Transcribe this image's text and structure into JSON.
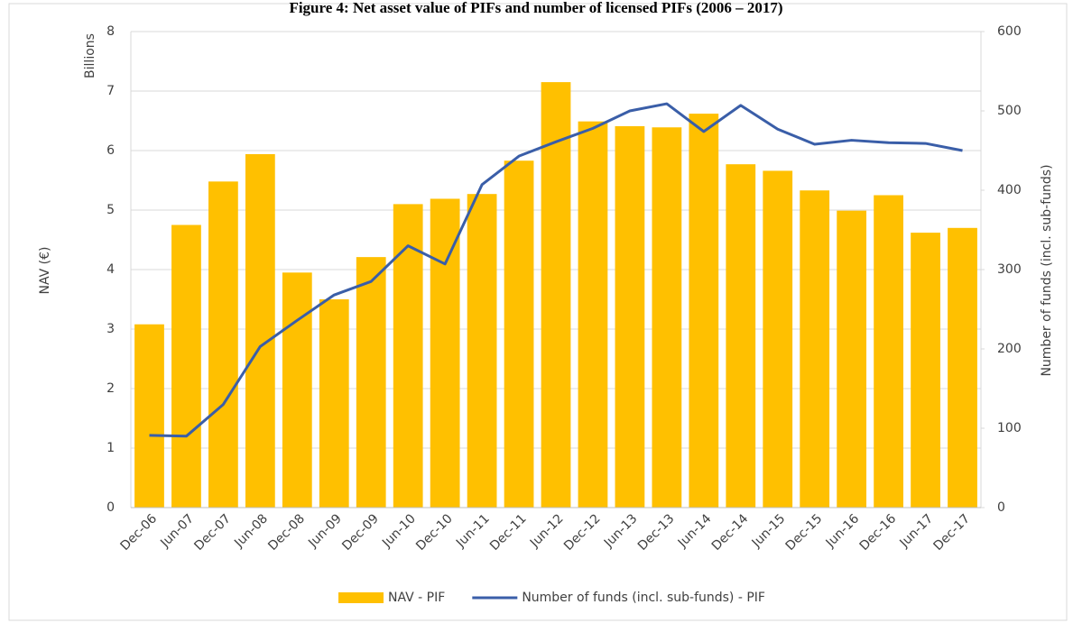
{
  "chart_data": {
    "type": "combo",
    "title": "Figure 4: Net asset value of PIFs and number of licensed PIFs (2006 – 2017)",
    "y_label": "NAV (€)",
    "y_unit": "Billions",
    "y2_label": "Number of funds (incl. sub-funds)",
    "categories": [
      "Dec-06",
      "Jun-07",
      "Dec-07",
      "Jun-08",
      "Dec-08",
      "Jun-09",
      "Dec-09",
      "Jun-10",
      "Dec-10",
      "Jun-11",
      "Dec-11",
      "Jun-12",
      "Dec-12",
      "Jun-13",
      "Dec-13",
      "Jun-14",
      "Dec-14",
      "Jun-15",
      "Dec-15",
      "Jun-16",
      "Dec-16",
      "Jun-17",
      "Dec-17"
    ],
    "series": [
      {
        "name": "NAV - PIF",
        "type": "bar",
        "color": "#ffc000",
        "axis": "y",
        "values": [
          3.08,
          4.75,
          5.48,
          5.94,
          3.95,
          3.5,
          4.21,
          5.1,
          5.19,
          5.27,
          5.83,
          7.15,
          6.49,
          6.41,
          6.39,
          6.62,
          5.77,
          5.66,
          5.33,
          4.99,
          5.25,
          4.62,
          4.7
        ]
      },
      {
        "name": "Number of funds (incl. sub-funds) - PIF",
        "type": "line",
        "color": "#3a5ea8",
        "axis": "y2",
        "values": [
          91,
          90,
          130,
          203,
          236,
          268,
          285,
          330,
          307,
          407,
          443,
          461,
          478,
          500,
          509,
          474,
          507,
          477,
          458,
          463,
          460,
          459,
          450
        ]
      }
    ],
    "ylim": [
      0,
      8
    ],
    "yticks": [
      0,
      1,
      2,
      3,
      4,
      5,
      6,
      7,
      8
    ],
    "y2lim": [
      0,
      600
    ],
    "y2ticks": [
      0,
      100,
      200,
      300,
      400,
      500,
      600
    ],
    "grid": true,
    "legend": "bottom"
  }
}
